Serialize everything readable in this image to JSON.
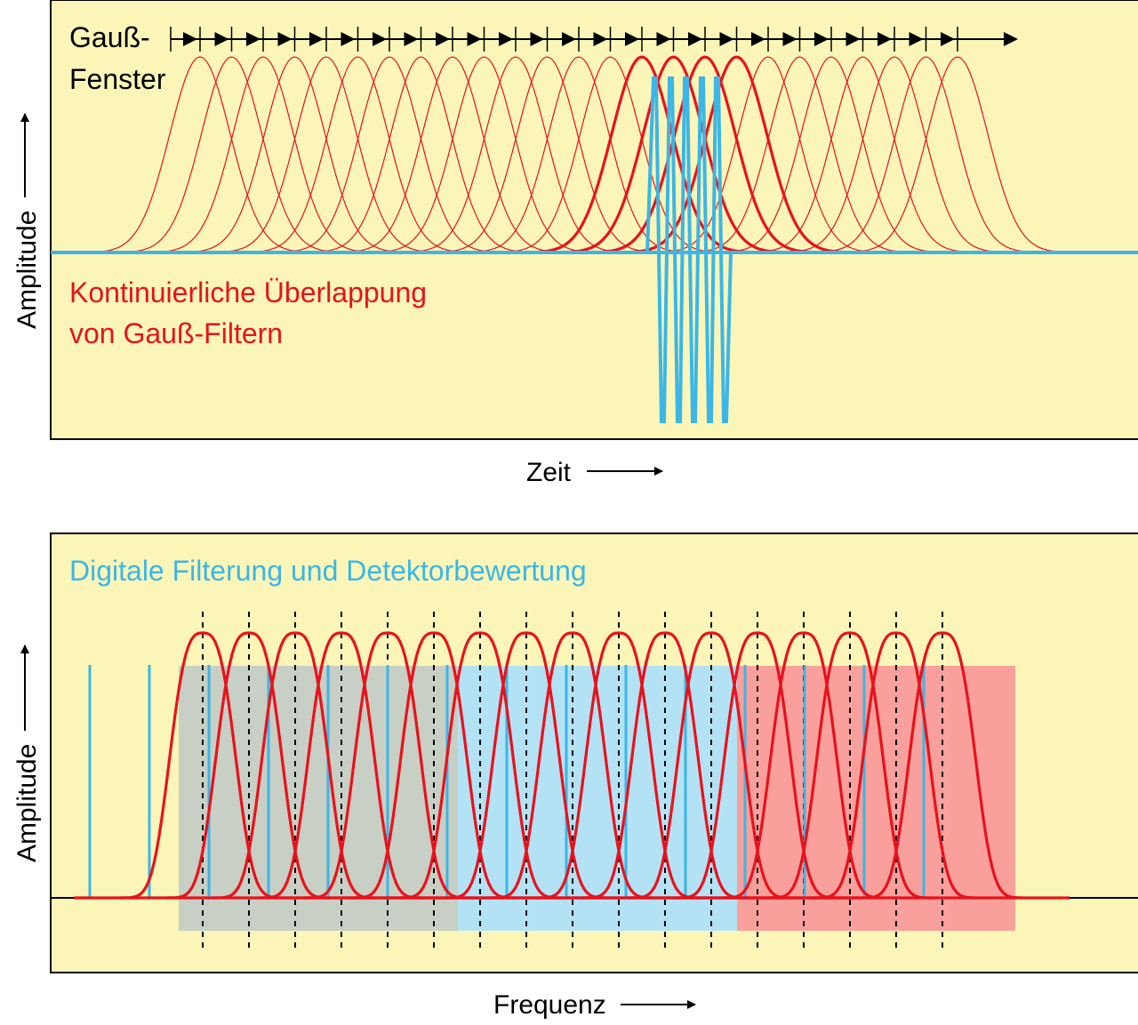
{
  "top_panel": {
    "window_label_line1": "Gauß-",
    "window_label_line2": "Fenster",
    "overlap_label_line1": "Kontinuierliche Überlappung",
    "overlap_label_line2": "von Gauß-Filtern",
    "y_axis_label": "Amplitude",
    "x_axis_label": "Zeit"
  },
  "bottom_panel": {
    "title": "Digitale Filterung und Detektorbewertung",
    "y_axis_label": "Amplitude",
    "x_axis_label": "Frequenz"
  },
  "colors": {
    "panel_background": "#fbf6b8",
    "gaussian": "#e8121c",
    "signal": "#3bb6e6",
    "axis": "#000000",
    "band_gray": "#c8cfc4",
    "band_blue": "#b3e2f5",
    "band_red": "#f9a09c"
  },
  "icons": [
    "arrow-up-icon",
    "arrow-right-icon",
    "window-step-arrow-icon"
  ]
}
